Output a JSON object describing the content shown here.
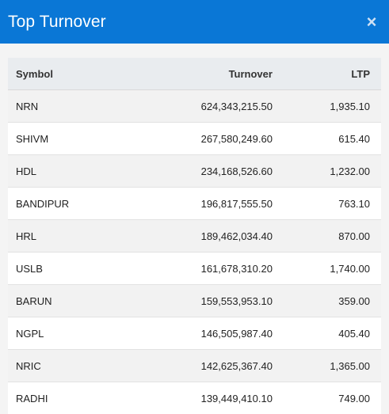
{
  "modal": {
    "title": "Top Turnover",
    "close_label": "×"
  },
  "table": {
    "headers": {
      "symbol": "Symbol",
      "turnover": "Turnover",
      "ltp": "LTP"
    },
    "rows": [
      {
        "symbol": "NRN",
        "turnover": "624,343,215.50",
        "ltp": "1,935.10"
      },
      {
        "symbol": "SHIVM",
        "turnover": "267,580,249.60",
        "ltp": "615.40"
      },
      {
        "symbol": "HDL",
        "turnover": "234,168,526.60",
        "ltp": "1,232.00"
      },
      {
        "symbol": "BANDIPUR",
        "turnover": "196,817,555.50",
        "ltp": "763.10"
      },
      {
        "symbol": "HRL",
        "turnover": "189,462,034.40",
        "ltp": "870.00"
      },
      {
        "symbol": "USLB",
        "turnover": "161,678,310.20",
        "ltp": "1,740.00"
      },
      {
        "symbol": "BARUN",
        "turnover": "159,553,953.10",
        "ltp": "359.00"
      },
      {
        "symbol": "NGPL",
        "turnover": "146,505,987.40",
        "ltp": "405.40"
      },
      {
        "symbol": "NRIC",
        "turnover": "142,625,367.40",
        "ltp": "1,365.00"
      },
      {
        "symbol": "RADHI",
        "turnover": "139,449,410.10",
        "ltp": "749.00"
      }
    ]
  },
  "colors": {
    "header_bg": "#0a77d6",
    "header_text": "#ffffff",
    "table_header_bg": "#e9ecef",
    "row_stripe": "#f2f2f2"
  }
}
